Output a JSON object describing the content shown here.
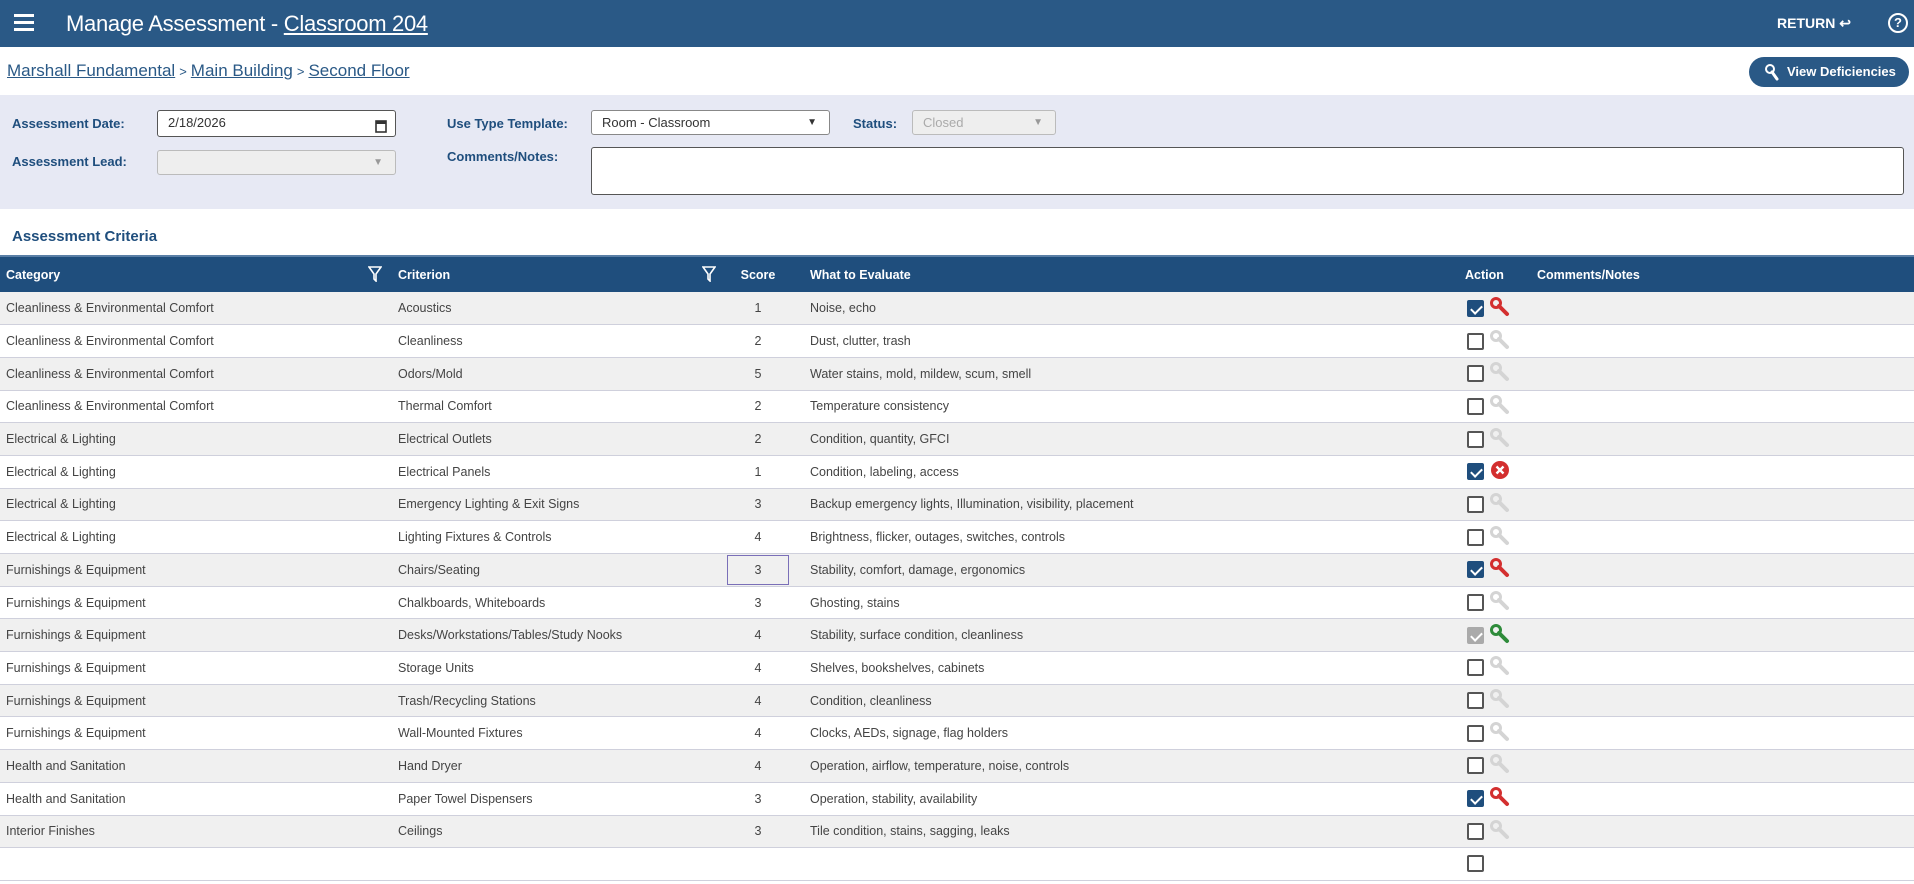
{
  "header": {
    "title": "Manage Assessment - ",
    "room": "Classroom 204",
    "return_label": "RETURN ↩",
    "help": "?"
  },
  "breadcrumb": [
    "Marshall Fundamental",
    "Main Building",
    "Second Floor"
  ],
  "breadcrumb_sep": ">",
  "view_deficiencies": "View Deficiencies",
  "form": {
    "date_label": "Assessment Date:",
    "date_value": "2/18/2026",
    "lead_label": "Assessment Lead:",
    "lead_value": "",
    "template_label": "Use Type Template:",
    "template_value": "Room - Classroom",
    "status_label": "Status:",
    "status_value": "Closed",
    "comments_label": "Comments/Notes:",
    "comments_value": ""
  },
  "section_title": "Assessment Criteria",
  "columns": [
    "Category",
    "Criterion",
    "Score",
    "What to Evaluate",
    "Action",
    "Comments/Notes"
  ],
  "colors": {
    "primary": "#2a5986",
    "header": "#1f4e7d",
    "deficiency": "#d32f2f",
    "resolved": "#2e8b3a"
  },
  "rows": [
    {
      "category": "Cleanliness & Environmental Comfort",
      "criterion": "Acoustics",
      "score": "1",
      "evaluate": "Noise, echo",
      "checked": "on",
      "action": "wrench-red",
      "comments": ""
    },
    {
      "category": "Cleanliness & Environmental Comfort",
      "criterion": "Cleanliness",
      "score": "2",
      "evaluate": "Dust, clutter, trash",
      "checked": "off",
      "action": "wrench-gray",
      "comments": ""
    },
    {
      "category": "Cleanliness & Environmental Comfort",
      "criterion": "Odors/Mold",
      "score": "5",
      "evaluate": "Water stains, mold, mildew, scum, smell",
      "checked": "off",
      "action": "wrench-gray",
      "comments": ""
    },
    {
      "category": "Cleanliness & Environmental Comfort",
      "criterion": "Thermal Comfort",
      "score": "2",
      "evaluate": "Temperature consistency",
      "checked": "off",
      "action": "wrench-gray",
      "comments": ""
    },
    {
      "category": "Electrical & Lighting",
      "criterion": "Electrical Outlets",
      "score": "2",
      "evaluate": "Condition, quantity, GFCI",
      "checked": "off",
      "action": "wrench-gray",
      "comments": ""
    },
    {
      "category": "Electrical & Lighting",
      "criterion": "Electrical Panels",
      "score": "1",
      "evaluate": "Condition, labeling, access",
      "checked": "on",
      "action": "x-red",
      "comments": ""
    },
    {
      "category": "Electrical & Lighting",
      "criterion": "Emergency Lighting & Exit Signs",
      "score": "3",
      "evaluate": "Backup emergency lights, Illumination, visibility, placement",
      "checked": "off",
      "action": "wrench-gray",
      "comments": ""
    },
    {
      "category": "Electrical & Lighting",
      "criterion": "Lighting Fixtures & Controls",
      "score": "4",
      "evaluate": "Brightness, flicker, outages, switches, controls",
      "checked": "off",
      "action": "wrench-gray",
      "comments": ""
    },
    {
      "category": "Furnishings & Equipment",
      "criterion": "Chairs/Seating",
      "score": "3",
      "evaluate": "Stability, comfort, damage, ergonomics",
      "checked": "on",
      "action": "wrench-red",
      "comments": ""
    },
    {
      "category": "Furnishings & Equipment",
      "criterion": "Chalkboards, Whiteboards",
      "score": "3",
      "evaluate": "Ghosting, stains",
      "checked": "off",
      "action": "wrench-gray",
      "comments": ""
    },
    {
      "category": "Furnishings & Equipment",
      "criterion": "Desks/Workstations/Tables/Study Nooks",
      "score": "4",
      "evaluate": "Stability, surface condition, cleanliness",
      "checked": "dim",
      "action": "wrench-green",
      "comments": ""
    },
    {
      "category": "Furnishings & Equipment",
      "criterion": "Storage Units",
      "score": "4",
      "evaluate": "Shelves, bookshelves, cabinets",
      "checked": "off",
      "action": "wrench-gray",
      "comments": ""
    },
    {
      "category": "Furnishings & Equipment",
      "criterion": "Trash/Recycling Stations",
      "score": "4",
      "evaluate": "Condition, cleanliness",
      "checked": "off",
      "action": "wrench-gray",
      "comments": ""
    },
    {
      "category": "Furnishings & Equipment",
      "criterion": "Wall-Mounted Fixtures",
      "score": "4",
      "evaluate": "Clocks, AEDs, signage, flag holders",
      "checked": "off",
      "action": "wrench-gray",
      "comments": ""
    },
    {
      "category": "Health and Sanitation",
      "criterion": "Hand Dryer",
      "score": "4",
      "evaluate": "Operation, airflow, temperature, noise, controls",
      "checked": "off",
      "action": "wrench-gray",
      "comments": ""
    },
    {
      "category": "Health and Sanitation",
      "criterion": "Paper Towel Dispensers",
      "score": "3",
      "evaluate": "Operation, stability, availability",
      "checked": "on",
      "action": "wrench-red",
      "comments": ""
    },
    {
      "category": "Interior Finishes",
      "criterion": "Ceilings",
      "score": "3",
      "evaluate": "Tile condition, stains, sagging, leaks",
      "checked": "off",
      "action": "wrench-gray",
      "comments": ""
    }
  ]
}
